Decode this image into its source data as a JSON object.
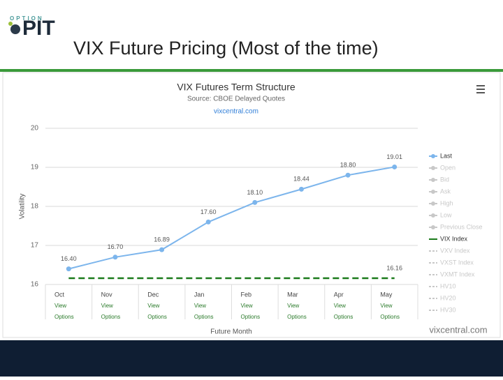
{
  "slide": {
    "logo_top": "OPTION",
    "logo_main": "PIT",
    "title": "VIX Future Pricing (Most of the time)"
  },
  "chart_data": {
    "type": "line",
    "title": "VIX Futures Term Structure",
    "subtitle": "Source: CBOE Delayed Quotes",
    "link": "vixcentral.com",
    "watermark": "vixcentral.com",
    "x_label": "Future Month",
    "y_label": "Volatility",
    "categories": [
      "Oct",
      "Nov",
      "Dec",
      "Jan",
      "Feb",
      "Mar",
      "Apr",
      "May"
    ],
    "x_sublabels": [
      "View",
      "Options"
    ],
    "ylim": [
      16,
      20
    ],
    "yticks": [
      16,
      17,
      18,
      19,
      20
    ],
    "grid": true,
    "series": [
      {
        "name": "Last",
        "color": "#7cb5ec",
        "dashed": false,
        "values": [
          16.4,
          16.7,
          16.89,
          17.6,
          18.1,
          18.44,
          18.8,
          19.01
        ],
        "value_labels": [
          "16.40",
          "16.70",
          "16.89",
          "17.60",
          "18.10",
          "18.44",
          "18.80",
          "19.01"
        ]
      },
      {
        "name": "VIX Index",
        "color": "#1a7a1a",
        "dashed": true,
        "values": [
          16.16,
          16.16,
          16.16,
          16.16,
          16.16,
          16.16,
          16.16,
          16.16
        ],
        "value_labels": [
          null,
          null,
          null,
          null,
          null,
          null,
          null,
          "16.16"
        ]
      }
    ],
    "legend_hidden": [
      "Open",
      "Bid",
      "Ask",
      "High",
      "Low",
      "Previous Close"
    ],
    "legend_hidden_after": [
      "VXV Index",
      "VXST Index",
      "VXMT Index",
      "HV10",
      "HV20",
      "HV30"
    ],
    "legend": "right"
  }
}
